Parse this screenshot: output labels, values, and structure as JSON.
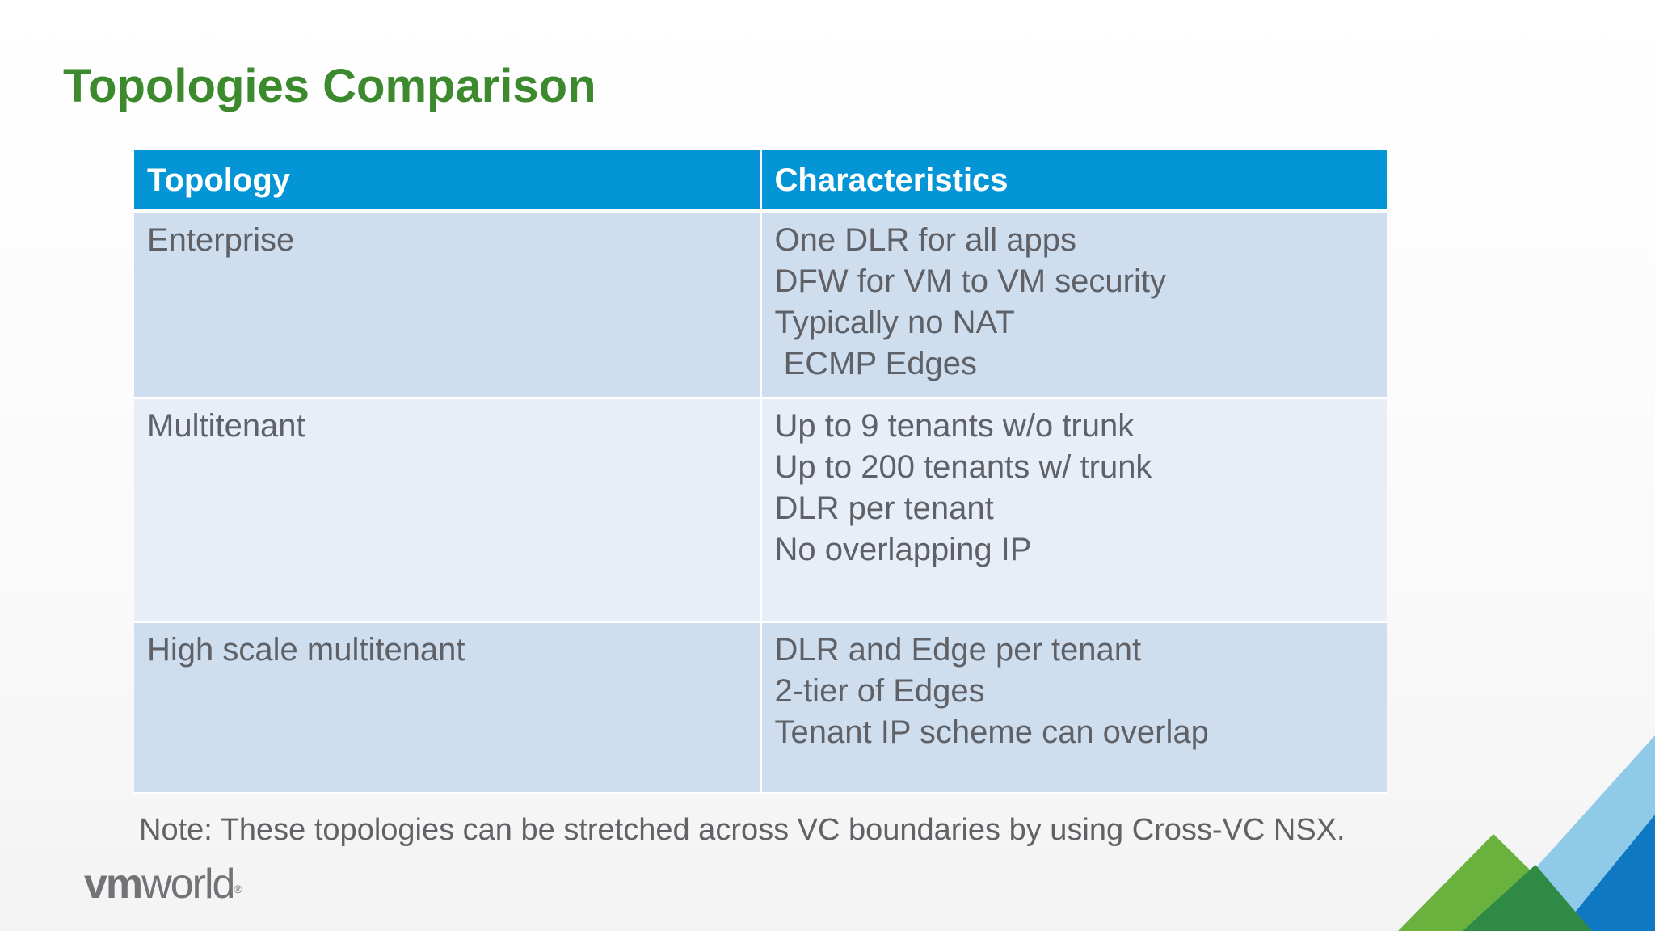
{
  "slide": {
    "title": "Topologies Comparison",
    "table": {
      "headers": [
        "Topology",
        "Characteristics"
      ],
      "rows": [
        {
          "topology": "Enterprise",
          "characteristics": [
            "One DLR for all apps",
            "DFW for VM to VM security",
            "Typically no NAT",
            " ECMP Edges"
          ]
        },
        {
          "topology": "Multitenant",
          "characteristics": [
            "Up to 9 tenants w/o trunk",
            "Up to 200 tenants w/ trunk",
            "DLR per tenant",
            "No overlapping IP"
          ]
        },
        {
          "topology": "High scale multitenant",
          "characteristics": [
            "DLR and Edge per tenant",
            "2-tier of Edges",
            "Tenant IP scheme can overlap"
          ]
        }
      ]
    },
    "note": "Note: These topologies can be stretched across VC boundaries by using Cross-VC NSX.",
    "logo": {
      "part1": "vm",
      "part2": "world",
      "mark": "®"
    },
    "colors": {
      "title": "#3d8a2e",
      "header_bg": "#0395d6",
      "row_dark": "#cfdeef",
      "row_light": "#e7eef8",
      "body_text": "#5f6166",
      "corner_green": "#6ab23e",
      "corner_light_blue": "#8fcbe8",
      "corner_blue": "#0e78c2",
      "corner_dark_green": "#2e8a45"
    },
    "icons": {
      "corner_graphic": "triangles-brand-graphic"
    }
  }
}
